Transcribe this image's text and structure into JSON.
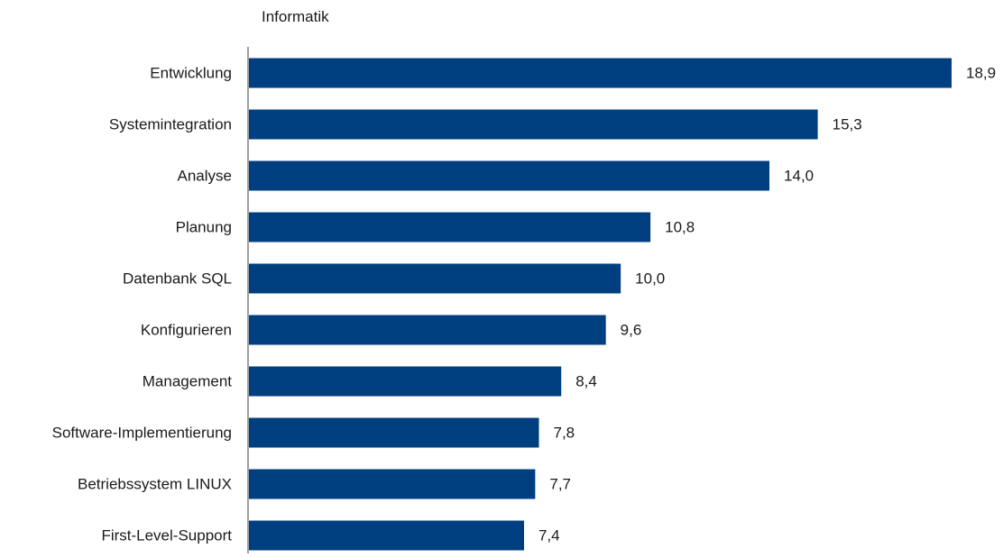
{
  "chart_data": {
    "type": "bar",
    "orientation": "horizontal",
    "title": "Informatik",
    "categories": [
      "Entwicklung",
      "Systemintegration",
      "Analyse",
      "Planung",
      "Datenbank SQL",
      "Konfigurieren",
      "Management",
      "Software-Implementierung",
      "Betriebssystem LINUX",
      "First-Level-Support"
    ],
    "values": [
      18.9,
      15.3,
      14.0,
      10.8,
      10.0,
      9.6,
      8.4,
      7.8,
      7.7,
      7.4
    ],
    "value_labels": [
      "18,9",
      "15,3",
      "14,0",
      "10,8",
      "10,0",
      "9,6",
      "8,4",
      "7,8",
      "7,7",
      "7,4"
    ],
    "xlim": [
      0,
      18.9
    ],
    "grid": false,
    "bar_color": "#003f7f",
    "axis_color": "#808080"
  }
}
